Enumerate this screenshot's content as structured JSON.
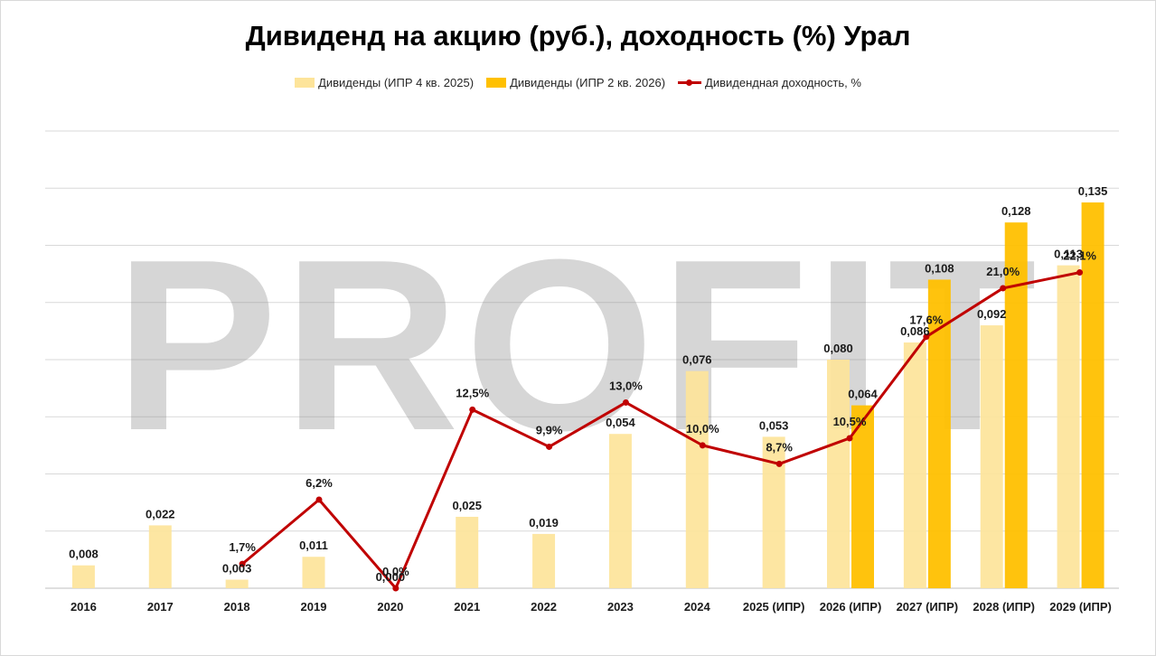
{
  "chart_data": {
    "type": "bar",
    "title": "Дивиденд на акцию (руб.), доходность (%) Урал",
    "watermark": "PROFIT",
    "categories": [
      "2016",
      "2017",
      "2018",
      "2019",
      "2020",
      "2021",
      "2022",
      "2023",
      "2024",
      "2025 (ИПР)",
      "2026 (ИПР)",
      "2027 (ИПР)",
      "2028 (ИПР)",
      "2029 (ИПР)"
    ],
    "series": [
      {
        "name": "Дивиденды (ИПР 4 кв. 2025)",
        "kind": "bar",
        "color": "#fde49a",
        "values": [
          0.008,
          0.022,
          0.003,
          0.011,
          0.0,
          0.025,
          0.019,
          0.054,
          0.076,
          0.053,
          0.08,
          0.086,
          0.092,
          0.113
        ],
        "labels": [
          "0,008",
          "0,022",
          "0,003",
          "0,011",
          "0,000",
          "0,025",
          "0,019",
          "0,054",
          "0,076",
          "0,053",
          "0,080",
          "0,086",
          "0,092",
          "0,113"
        ]
      },
      {
        "name": "Дивиденды (ИПР 2 кв. 2026)",
        "kind": "bar",
        "color": "#ffc000",
        "values": [
          null,
          null,
          null,
          null,
          null,
          null,
          null,
          null,
          null,
          null,
          0.064,
          0.108,
          0.128,
          0.135
        ],
        "labels": [
          "",
          "",
          "",
          "",
          "",
          "",
          "",
          "",
          "",
          "",
          "0,064",
          "0,108",
          "0,128",
          "0,135"
        ]
      },
      {
        "name": "Дивидендная доходность, %",
        "kind": "line",
        "color": "#c00000",
        "values": [
          null,
          null,
          1.7,
          6.2,
          0.0,
          12.5,
          9.9,
          13.0,
          10.0,
          8.7,
          10.5,
          17.6,
          21.0,
          22.1
        ],
        "labels": [
          "",
          "",
          "1,7%",
          "6,2%",
          "0,0%",
          "12,5%",
          "9,9%",
          "13,0%",
          "10,0%",
          "8,7%",
          "10,5%",
          "17,6%",
          "21,0%",
          "22,1%"
        ]
      }
    ],
    "ylim": [
      0,
      0.16
    ],
    "y2lim": [
      0,
      32
    ],
    "grid": true,
    "legend": "top-center"
  }
}
